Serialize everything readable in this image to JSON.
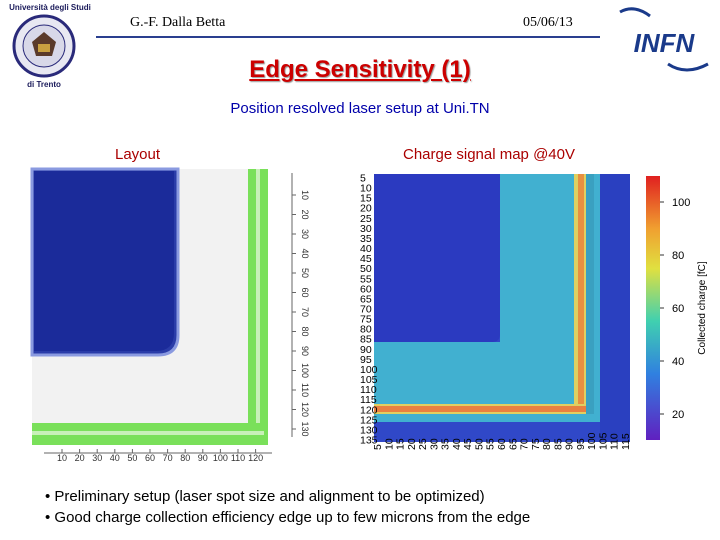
{
  "header": {
    "author": "G.-F. Dalla Betta",
    "date": "05/06/13",
    "logo_left_text_top": "Università degli Studi",
    "logo_left_text_bottom": "di Trento",
    "logo_right": "INFN"
  },
  "slide": {
    "title": "Edge Sensitivity (1)",
    "subtitle": "Position resolved laser setup at Uni.TN"
  },
  "layout_panel": {
    "label": "Layout",
    "x_ticks": [
      "10",
      "20",
      "30",
      "40",
      "50",
      "60",
      "70",
      "80",
      "90",
      "100",
      "110",
      "120"
    ],
    "y_ticks": [
      "10",
      "20",
      "30",
      "40",
      "50",
      "60",
      "70",
      "80",
      "90",
      "100",
      "110",
      "120",
      "130"
    ]
  },
  "map_panel": {
    "label": "Charge signal map @40V",
    "y_ticks": [
      "5",
      "10",
      "15",
      "20",
      "25",
      "30",
      "35",
      "40",
      "45",
      "50",
      "55",
      "60",
      "65",
      "70",
      "75",
      "80",
      "85",
      "90",
      "95",
      "100",
      "105",
      "110",
      "115",
      "120",
      "125",
      "130",
      "135"
    ],
    "x_ticks": [
      "5",
      "10",
      "15",
      "20",
      "25",
      "30",
      "35",
      "40",
      "45",
      "50",
      "55",
      "60",
      "65",
      "70",
      "75",
      "80",
      "85",
      "90",
      "95",
      "100",
      "105",
      "110",
      "115"
    ],
    "colorbar_label": "Collected charge [fC]",
    "colorbar_ticks": [
      "100",
      "80",
      "60",
      "40",
      "20"
    ]
  },
  "bullets": [
    "• Preliminary setup (laser spot size and alignment to be optimized)",
    "• Good charge collection efficiency edge up to few microns from the edge"
  ]
}
